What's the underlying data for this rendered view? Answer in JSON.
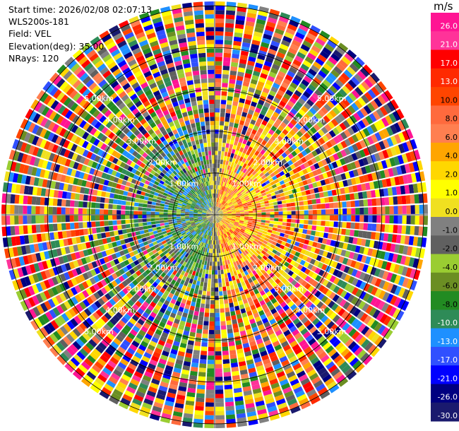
{
  "info": {
    "start_time": "Start time: 2026/02/08 02:07:13",
    "station": "WLS200s-181",
    "field": "Field: VEL",
    "elevation": "Elevation(deg): 35.00",
    "nrays": "NRays: 120"
  },
  "range_labels": [
    "1.00km",
    "2.00km",
    "3.00km",
    "4.00km",
    "5.00km"
  ],
  "chart_data": {
    "type": "heatmap",
    "projection": "polar-ppi",
    "field": "VEL",
    "n_rays": 120,
    "max_range_km": 5.0,
    "range_rings_km": [
      1,
      2,
      3,
      4,
      5
    ],
    "colorbar": {
      "unit": "m/s",
      "ticks": [
        "26.0",
        "21.0",
        "17.0",
        "13.0",
        "10.0",
        "8.0",
        "6.0",
        "4.0",
        "2.0",
        "1.0",
        "0.0",
        "-1.0",
        "-2.0",
        "-4.0",
        "-6.0",
        "-8.0",
        "-10.0",
        "-13.0",
        "-17.0",
        "-21.0",
        "-26.0",
        "-30.0"
      ],
      "colors": [
        "#ff1493",
        "#ff3399",
        "#ff0000",
        "#ff2a00",
        "#ff4500",
        "#ff6a3d",
        "#ff7f50",
        "#ffa500",
        "#ffd700",
        "#ffff00",
        "#f0e020",
        "#808080",
        "#606060",
        "#9acd32",
        "#6b8e23",
        "#228b22",
        "#2e8b57",
        "#1e90ff",
        "#3050ff",
        "#0000ff",
        "#000080",
        "#1a1a6e"
      ]
    }
  }
}
